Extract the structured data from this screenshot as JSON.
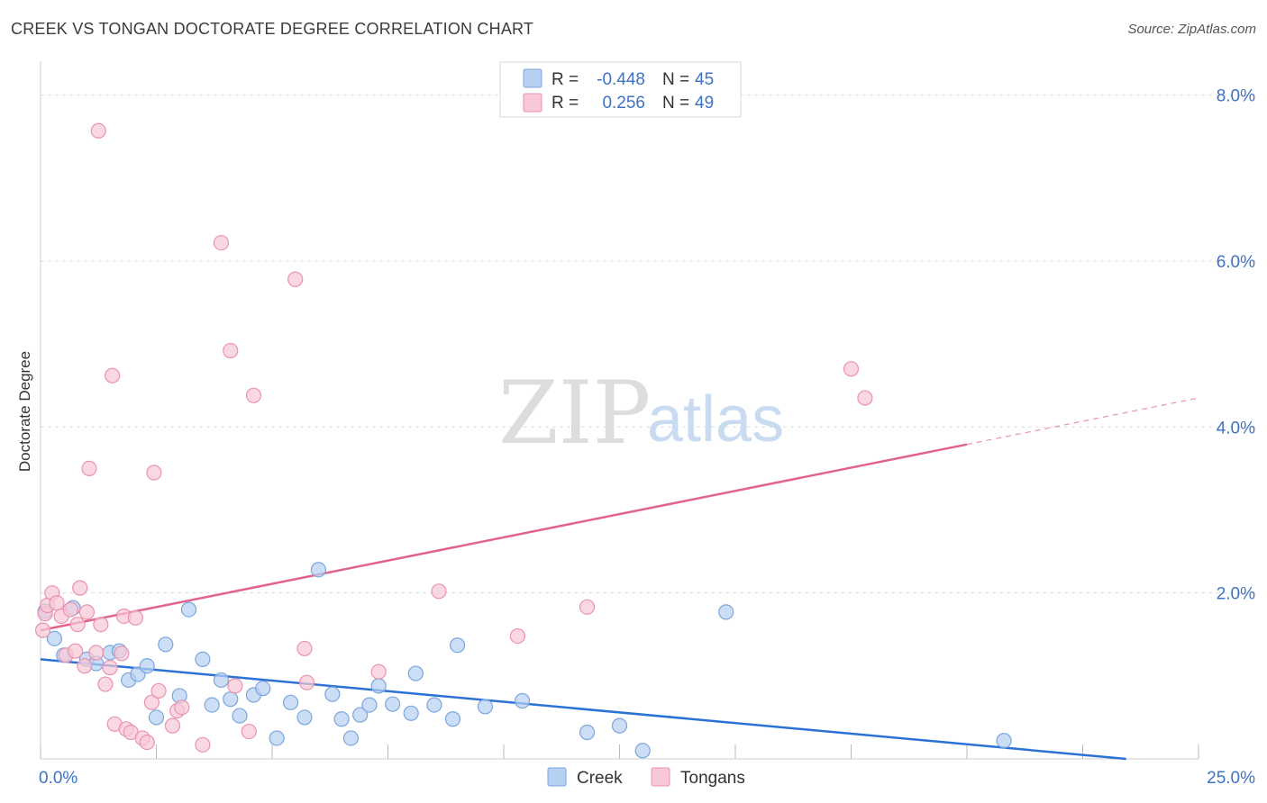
{
  "title": "CREEK VS TONGAN DOCTORATE DEGREE CORRELATION CHART",
  "source": "Source: ZipAtlas.com",
  "colors": {
    "creek_fill": "#b6d0f2",
    "creek_stroke": "#7aa6de",
    "creek_line": "#2b72d6",
    "tongans_fill": "#f8c8d6",
    "tongans_stroke": "#ea93ae",
    "tongans_line": "#e2648e",
    "axis_label": "#3d73c4",
    "grid": "#dedede"
  },
  "legend": {
    "rows": [
      {
        "r_label": "R =",
        "r_value": "-0.448",
        "n_label": "N =",
        "n_value": "45"
      },
      {
        "r_label": "R =",
        "r_value": "0.256",
        "n_label": "N =",
        "n_value": "49"
      }
    ]
  },
  "watermark": {
    "zip": "ZIP",
    "atlas": "atlas"
  },
  "chart_data": {
    "type": "scatter",
    "xlabel": "",
    "ylabel": "Doctorate Degree",
    "xlim": [
      0,
      25
    ],
    "ylim": [
      0,
      8.3
    ],
    "x_tick_labels": [
      "0.0%",
      "25.0%"
    ],
    "y_ticks": [
      2,
      4,
      6,
      8
    ],
    "y_tick_labels": [
      "2.0%",
      "4.0%",
      "6.0%",
      "8.0%"
    ],
    "grid": true,
    "legend_position": "top-center",
    "series": [
      {
        "name": "Creek",
        "points": [
          [
            0.1,
            1.78
          ],
          [
            0.3,
            1.45
          ],
          [
            0.5,
            1.25
          ],
          [
            0.7,
            1.82
          ],
          [
            1.0,
            1.2
          ],
          [
            1.2,
            1.15
          ],
          [
            1.5,
            1.28
          ],
          [
            1.7,
            1.3
          ],
          [
            1.9,
            0.95
          ],
          [
            2.1,
            1.02
          ],
          [
            2.3,
            1.12
          ],
          [
            2.5,
            0.5
          ],
          [
            2.7,
            1.38
          ],
          [
            3.0,
            0.76
          ],
          [
            3.2,
            1.8
          ],
          [
            3.5,
            1.2
          ],
          [
            3.7,
            0.65
          ],
          [
            3.9,
            0.95
          ],
          [
            4.1,
            0.72
          ],
          [
            4.3,
            0.52
          ],
          [
            4.6,
            0.77
          ],
          [
            4.8,
            0.85
          ],
          [
            5.1,
            0.25
          ],
          [
            5.4,
            0.68
          ],
          [
            5.7,
            0.5
          ],
          [
            6.0,
            2.28
          ],
          [
            6.3,
            0.78
          ],
          [
            6.5,
            0.48
          ],
          [
            6.7,
            0.25
          ],
          [
            6.9,
            0.53
          ],
          [
            7.1,
            0.65
          ],
          [
            7.3,
            0.88
          ],
          [
            7.6,
            0.66
          ],
          [
            8.0,
            0.55
          ],
          [
            8.1,
            1.03
          ],
          [
            8.5,
            0.65
          ],
          [
            8.9,
            0.48
          ],
          [
            9.0,
            1.37
          ],
          [
            9.6,
            0.63
          ],
          [
            10.4,
            0.7
          ],
          [
            11.8,
            0.32
          ],
          [
            12.5,
            0.4
          ],
          [
            13.0,
            0.1
          ],
          [
            14.8,
            1.77
          ],
          [
            20.8,
            0.22
          ]
        ]
      },
      {
        "name": "Tongans",
        "points": [
          [
            0.05,
            1.55
          ],
          [
            0.1,
            1.75
          ],
          [
            0.15,
            1.85
          ],
          [
            0.25,
            2.0
          ],
          [
            0.35,
            1.88
          ],
          [
            0.45,
            1.72
          ],
          [
            0.55,
            1.25
          ],
          [
            0.65,
            1.8
          ],
          [
            0.75,
            1.3
          ],
          [
            0.8,
            1.62
          ],
          [
            0.85,
            2.06
          ],
          [
            0.95,
            1.12
          ],
          [
            1.0,
            1.77
          ],
          [
            1.05,
            3.5
          ],
          [
            1.2,
            1.28
          ],
          [
            1.25,
            7.57
          ],
          [
            1.3,
            1.62
          ],
          [
            1.4,
            0.9
          ],
          [
            1.5,
            1.1
          ],
          [
            1.55,
            4.62
          ],
          [
            1.6,
            0.42
          ],
          [
            1.75,
            1.27
          ],
          [
            1.8,
            1.72
          ],
          [
            1.85,
            0.36
          ],
          [
            1.95,
            0.32
          ],
          [
            2.05,
            1.7
          ],
          [
            2.2,
            0.25
          ],
          [
            2.3,
            0.2
          ],
          [
            2.4,
            0.68
          ],
          [
            2.45,
            3.45
          ],
          [
            2.55,
            0.82
          ],
          [
            2.85,
            0.4
          ],
          [
            2.95,
            0.58
          ],
          [
            3.05,
            0.62
          ],
          [
            3.5,
            0.17
          ],
          [
            3.9,
            6.22
          ],
          [
            4.1,
            4.92
          ],
          [
            4.2,
            0.88
          ],
          [
            4.5,
            0.33
          ],
          [
            4.6,
            4.38
          ],
          [
            5.5,
            5.78
          ],
          [
            5.7,
            1.33
          ],
          [
            5.75,
            0.92
          ],
          [
            7.3,
            1.05
          ],
          [
            8.6,
            2.02
          ],
          [
            10.3,
            1.48
          ],
          [
            11.8,
            1.83
          ],
          [
            17.5,
            4.7
          ],
          [
            17.8,
            4.35
          ]
        ]
      }
    ],
    "trendlines": [
      {
        "series": "Creek",
        "x": [
          0,
          25
        ],
        "y": [
          1.2,
          -0.08
        ],
        "dashed_from": null
      },
      {
        "series": "Tongans",
        "x": [
          0,
          25
        ],
        "y": [
          1.55,
          4.35
        ],
        "dashed_from": 20
      }
    ]
  }
}
